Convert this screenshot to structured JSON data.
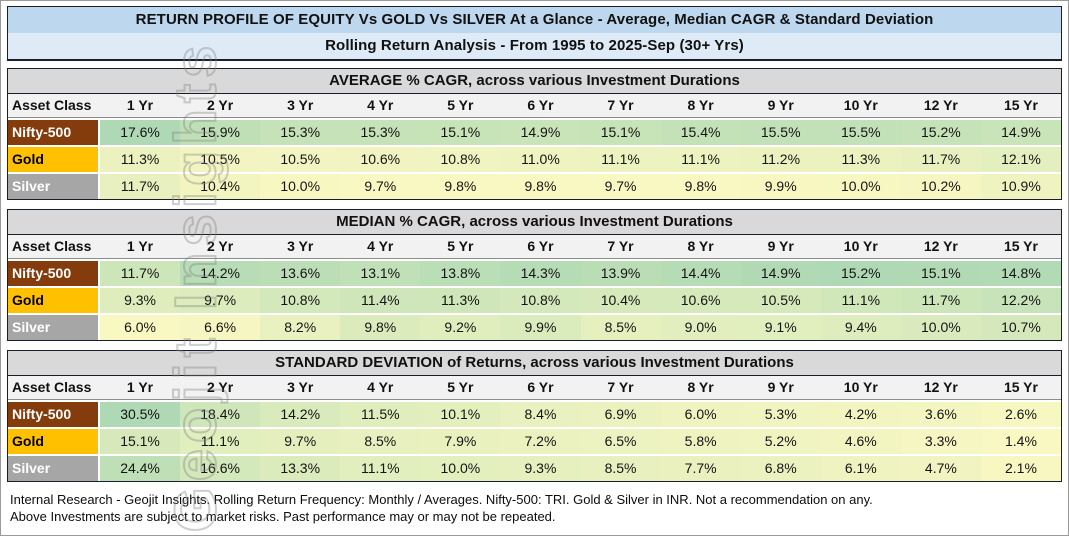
{
  "title": {
    "line1": "RETURN PROFILE OF EQUITY Vs GOLD Vs SILVER At a Glance - Average, Median CAGR & Standard Deviation",
    "line2": "Rolling Return Analysis - From 1995 to 2025-Sep (30+ Yrs)"
  },
  "watermark": "Geojit Insights",
  "table_header": {
    "asset_class_label": "Asset Class",
    "duration_columns": [
      "1 Yr",
      "2 Yr",
      "3 Yr",
      "4 Yr",
      "5 Yr",
      "6 Yr",
      "7 Yr",
      "8 Yr",
      "9 Yr",
      "10 Yr",
      "12 Yr",
      "15 Yr"
    ]
  },
  "colors": {
    "title_bar_top": "#BDD7EE",
    "title_bar_bottom": "#DEEAF6",
    "section_bar": "#D9D9D9",
    "header_row": "#F2F2F2",
    "heat_green_high": "#AFD9B4",
    "heat_yellow_low": "#FAF8C2",
    "asset_styles": {
      "Nifty-500": {
        "bg": "#843C0C",
        "fg": "#FFFFFF"
      },
      "Gold": {
        "bg": "#FFC000",
        "fg": "#000000"
      },
      "Silver": {
        "bg": "#A6A6A6",
        "fg": "#FFFFFF"
      }
    }
  },
  "value_suffix": "%",
  "chart_data": [
    {
      "type": "heatmap",
      "title": "AVERAGE % CAGR, across various Investment Durations",
      "categories": [
        "1 Yr",
        "2 Yr",
        "3 Yr",
        "4 Yr",
        "5 Yr",
        "6 Yr",
        "7 Yr",
        "8 Yr",
        "9 Yr",
        "10 Yr",
        "12 Yr",
        "15 Yr"
      ],
      "scale": {
        "min": 9.7,
        "max": 17.6
      },
      "series": [
        {
          "name": "Nifty-500",
          "values": [
            17.6,
            15.9,
            15.3,
            15.3,
            15.1,
            14.9,
            15.1,
            15.4,
            15.5,
            15.5,
            15.2,
            14.9
          ]
        },
        {
          "name": "Gold",
          "values": [
            11.3,
            10.5,
            10.5,
            10.6,
            10.8,
            11.0,
            11.1,
            11.1,
            11.2,
            11.3,
            11.7,
            12.1
          ]
        },
        {
          "name": "Silver",
          "values": [
            11.7,
            10.4,
            10.0,
            9.7,
            9.8,
            9.8,
            9.7,
            9.8,
            9.9,
            10.0,
            10.2,
            10.9
          ]
        }
      ]
    },
    {
      "type": "heatmap",
      "title": "MEDIAN % CAGR, across various Investment Durations",
      "categories": [
        "1 Yr",
        "2 Yr",
        "3 Yr",
        "4 Yr",
        "5 Yr",
        "6 Yr",
        "7 Yr",
        "8 Yr",
        "9 Yr",
        "10 Yr",
        "12 Yr",
        "15 Yr"
      ],
      "scale": {
        "min": 6.0,
        "max": 15.2
      },
      "series": [
        {
          "name": "Nifty-500",
          "values": [
            11.7,
            14.2,
            13.6,
            13.1,
            13.8,
            14.3,
            13.9,
            14.4,
            14.9,
            15.2,
            15.1,
            14.8
          ]
        },
        {
          "name": "Gold",
          "values": [
            9.3,
            9.7,
            10.8,
            11.4,
            11.3,
            10.8,
            10.4,
            10.6,
            10.5,
            11.1,
            11.7,
            12.2
          ]
        },
        {
          "name": "Silver",
          "values": [
            6.0,
            6.6,
            8.2,
            9.8,
            9.2,
            9.9,
            8.5,
            9.0,
            9.1,
            9.4,
            10.0,
            10.7
          ]
        }
      ]
    },
    {
      "type": "heatmap",
      "title": "STANDARD DEVIATION of Returns, across various Investment Durations",
      "categories": [
        "1 Yr",
        "2 Yr",
        "3 Yr",
        "4 Yr",
        "5 Yr",
        "6 Yr",
        "7 Yr",
        "8 Yr",
        "9 Yr",
        "10 Yr",
        "12 Yr",
        "15 Yr"
      ],
      "scale": {
        "min": 1.4,
        "max": 30.5
      },
      "series": [
        {
          "name": "Nifty-500",
          "values": [
            30.5,
            18.4,
            14.2,
            11.5,
            10.1,
            8.4,
            6.9,
            6.0,
            5.3,
            4.2,
            3.6,
            2.6
          ]
        },
        {
          "name": "Gold",
          "values": [
            15.1,
            11.1,
            9.7,
            8.5,
            7.9,
            7.2,
            6.5,
            5.8,
            5.2,
            4.6,
            3.3,
            1.4
          ]
        },
        {
          "name": "Silver",
          "values": [
            24.4,
            16.6,
            13.3,
            11.1,
            10.0,
            9.3,
            8.5,
            7.7,
            6.8,
            6.1,
            4.7,
            2.1
          ]
        }
      ]
    }
  ],
  "footer": {
    "line1": "Internal Research - Geojit Insights. Rolling Return Frequency: Monthly / Averages. Nifty-500: TRI. Gold & Silver in INR. Not a recommendation on any.",
    "line2": "Above Investments are subject to market risks. Past performance may or may not be repeated."
  }
}
